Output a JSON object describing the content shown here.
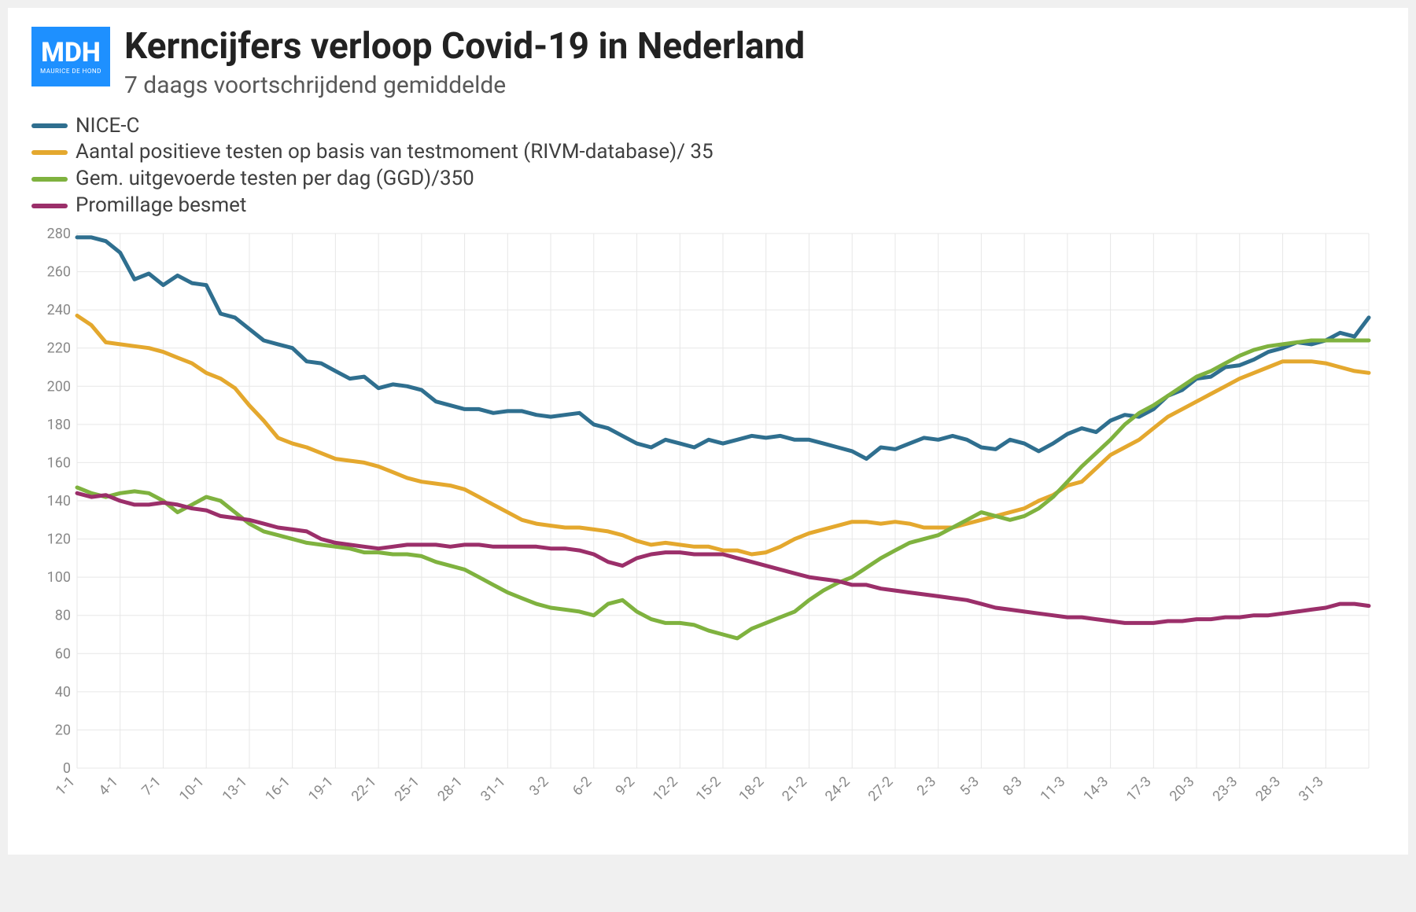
{
  "logo": {
    "main": "MDH",
    "sub": "MAURICE DE HOND",
    "bg": "#1e90ff",
    "fg": "#ffffff"
  },
  "title": "Kerncijfers verloop Covid-19 in Nederland",
  "subtitle": "7 daags voortschrijdend gemiddelde",
  "title_color": "#222222",
  "subtitle_color": "#595959",
  "background_color": "#ffffff",
  "chart": {
    "type": "line",
    "ylim": [
      0,
      280
    ],
    "ytick_step": 20,
    "yticks": [
      0,
      20,
      40,
      60,
      80,
      100,
      120,
      140,
      160,
      180,
      200,
      220,
      240,
      260,
      280
    ],
    "xticks": [
      "1-1",
      "4-1",
      "7-1",
      "10-1",
      "13-1",
      "16-1",
      "19-1",
      "22-1",
      "25-1",
      "28-1",
      "31-1",
      "3-2",
      "6-2",
      "9-2",
      "12-2",
      "15-2",
      "18-2",
      "21-2",
      "24-2",
      "27-2",
      "2-3",
      "5-3",
      "8-3",
      "11-3",
      "14-3",
      "17-3",
      "20-3",
      "23-3",
      "28-3",
      "31-3"
    ],
    "xtick_every": 3,
    "n_points": 91,
    "grid_color": "#e7e7e7",
    "axis_color": "#cccccc",
    "line_width": 5,
    "tick_fontsize": 18,
    "tick_color": "#888888",
    "legend_fontsize": 26,
    "legend_text_color": "#404040",
    "series": [
      {
        "id": "nice_c",
        "label": "NICE-C",
        "color": "#2f6f8f",
        "values": [
          278,
          278,
          276,
          270,
          256,
          259,
          253,
          258,
          254,
          253,
          238,
          236,
          230,
          224,
          222,
          220,
          213,
          212,
          208,
          204,
          205,
          199,
          201,
          200,
          198,
          192,
          190,
          188,
          188,
          186,
          187,
          187,
          185,
          184,
          185,
          186,
          180,
          178,
          174,
          170,
          168,
          172,
          170,
          168,
          172,
          170,
          172,
          174,
          173,
          174,
          172,
          172,
          170,
          168,
          166,
          162,
          168,
          167,
          170,
          173,
          172,
          174,
          172,
          168,
          167,
          172,
          170,
          166,
          170,
          175,
          178,
          176,
          182,
          185,
          184,
          188,
          195,
          198,
          204,
          205,
          210,
          211,
          214,
          218,
          220,
          223,
          222,
          224,
          228,
          226,
          236
        ]
      },
      {
        "id": "pos_tests",
        "label": "Aantal positieve testen op basis van testmoment (RIVM-database)/ 35",
        "color": "#e4a82e",
        "values": [
          237,
          232,
          223,
          222,
          221,
          220,
          218,
          215,
          212,
          207,
          204,
          199,
          190,
          182,
          173,
          170,
          168,
          165,
          162,
          161,
          160,
          158,
          155,
          152,
          150,
          149,
          148,
          146,
          142,
          138,
          134,
          130,
          128,
          127,
          126,
          126,
          125,
          124,
          122,
          119,
          117,
          118,
          117,
          116,
          116,
          114,
          114,
          112,
          113,
          116,
          120,
          123,
          125,
          127,
          129,
          129,
          128,
          129,
          128,
          126,
          126,
          126,
          128,
          130,
          132,
          134,
          136,
          140,
          143,
          148,
          150,
          157,
          164,
          168,
          172,
          178,
          184,
          188,
          192,
          196,
          200,
          204,
          207,
          210,
          213,
          213,
          213,
          212,
          210,
          208,
          207
        ]
      },
      {
        "id": "tests_per_day",
        "label": "Gem. uitgevoerde testen per dag (GGD)/350",
        "color": "#7fb23f",
        "values": [
          147,
          144,
          142,
          144,
          145,
          144,
          140,
          134,
          138,
          142,
          140,
          134,
          128,
          124,
          122,
          120,
          118,
          117,
          116,
          115,
          113,
          113,
          112,
          112,
          111,
          108,
          106,
          104,
          100,
          96,
          92,
          89,
          86,
          84,
          83,
          82,
          80,
          86,
          88,
          82,
          78,
          76,
          76,
          75,
          72,
          70,
          68,
          73,
          76,
          79,
          82,
          88,
          93,
          97,
          100,
          105,
          110,
          114,
          118,
          120,
          122,
          126,
          130,
          134,
          132,
          130,
          132,
          136,
          142,
          150,
          158,
          165,
          172,
          180,
          186,
          190,
          195,
          200,
          205,
          208,
          212,
          216,
          219,
          221,
          222,
          223,
          224,
          224,
          224,
          224,
          224
        ]
      },
      {
        "id": "promillage",
        "label": "Promillage besmet",
        "color": "#9b2f6a",
        "values": [
          144,
          142,
          143,
          140,
          138,
          138,
          139,
          138,
          136,
          135,
          132,
          131,
          130,
          128,
          126,
          125,
          124,
          120,
          118,
          117,
          116,
          115,
          116,
          117,
          117,
          117,
          116,
          117,
          117,
          116,
          116,
          116,
          116,
          115,
          115,
          114,
          112,
          108,
          106,
          110,
          112,
          113,
          113,
          112,
          112,
          112,
          110,
          108,
          106,
          104,
          102,
          100,
          99,
          98,
          96,
          96,
          94,
          93,
          92,
          91,
          90,
          89,
          88,
          86,
          84,
          83,
          82,
          81,
          80,
          79,
          79,
          78,
          77,
          76,
          76,
          76,
          77,
          77,
          78,
          78,
          79,
          79,
          80,
          80,
          81,
          82,
          83,
          84,
          86,
          86,
          85
        ]
      }
    ]
  }
}
